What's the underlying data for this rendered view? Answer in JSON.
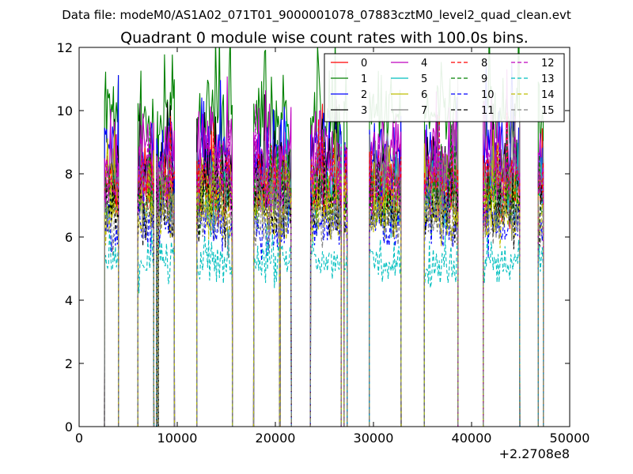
{
  "figure": {
    "suptitle": "Data file: modeM0/AS1A02_071T01_9000001078_07883cztM0_level2_quad_clean.evt"
  },
  "chart_data": {
    "type": "line",
    "title": "Quadrant 0 module wise count rates with 100.0s bins.",
    "xlabel": "",
    "ylabel": "",
    "x_offset_label": "+2.2708e8",
    "xlim": [
      0,
      50000
    ],
    "ylim": [
      0,
      12
    ],
    "x_ticks": [
      0,
      10000,
      20000,
      30000,
      40000,
      50000
    ],
    "y_ticks": [
      0,
      2,
      4,
      6,
      8,
      10,
      12
    ],
    "grid": false,
    "legend_position": "top-right",
    "legend_columns": 4,
    "good_time_intervals": [
      [
        2600,
        4000
      ],
      [
        6000,
        7600
      ],
      [
        7900,
        8000
      ],
      [
        8100,
        9700
      ],
      [
        12000,
        15600
      ],
      [
        17800,
        20400
      ],
      [
        20500,
        21600
      ],
      [
        23600,
        26700
      ],
      [
        27000,
        27300
      ],
      [
        29600,
        32800
      ],
      [
        35200,
        38600
      ],
      [
        41200,
        44900
      ],
      [
        46800,
        47300
      ]
    ],
    "series": [
      {
        "name": "0",
        "color": "#ff0000",
        "dash": "solid",
        "mean": 7.6
      },
      {
        "name": "1",
        "color": "#008000",
        "dash": "solid",
        "mean": 9.8
      },
      {
        "name": "2",
        "color": "#0000ff",
        "dash": "solid",
        "mean": 8.6
      },
      {
        "name": "3",
        "color": "#000000",
        "dash": "solid",
        "mean": 8.1
      },
      {
        "name": "4",
        "color": "#bf00bf",
        "dash": "solid",
        "mean": 8.7
      },
      {
        "name": "5",
        "color": "#00bfbf",
        "dash": "solid",
        "mean": 7.3
      },
      {
        "name": "6",
        "color": "#bfbf00",
        "dash": "solid",
        "mean": 7.4
      },
      {
        "name": "7",
        "color": "#808080",
        "dash": "solid",
        "mean": 7.9
      },
      {
        "name": "8",
        "color": "#ff0000",
        "dash": "dashed",
        "mean": 7.7
      },
      {
        "name": "9",
        "color": "#008000",
        "dash": "dashed",
        "mean": 7.2
      },
      {
        "name": "10",
        "color": "#0000ff",
        "dash": "dashed",
        "mean": 6.4
      },
      {
        "name": "11",
        "color": "#000000",
        "dash": "dashed",
        "mean": 6.9
      },
      {
        "name": "12",
        "color": "#bf00bf",
        "dash": "dashed",
        "mean": 7.8
      },
      {
        "name": "13",
        "color": "#00bfbf",
        "dash": "dashed",
        "mean": 5.2
      },
      {
        "name": "14",
        "color": "#bfbf00",
        "dash": "dashed",
        "mean": 6.7
      },
      {
        "name": "15",
        "color": "#808080",
        "dash": "dashed",
        "mean": 6.6
      }
    ]
  }
}
